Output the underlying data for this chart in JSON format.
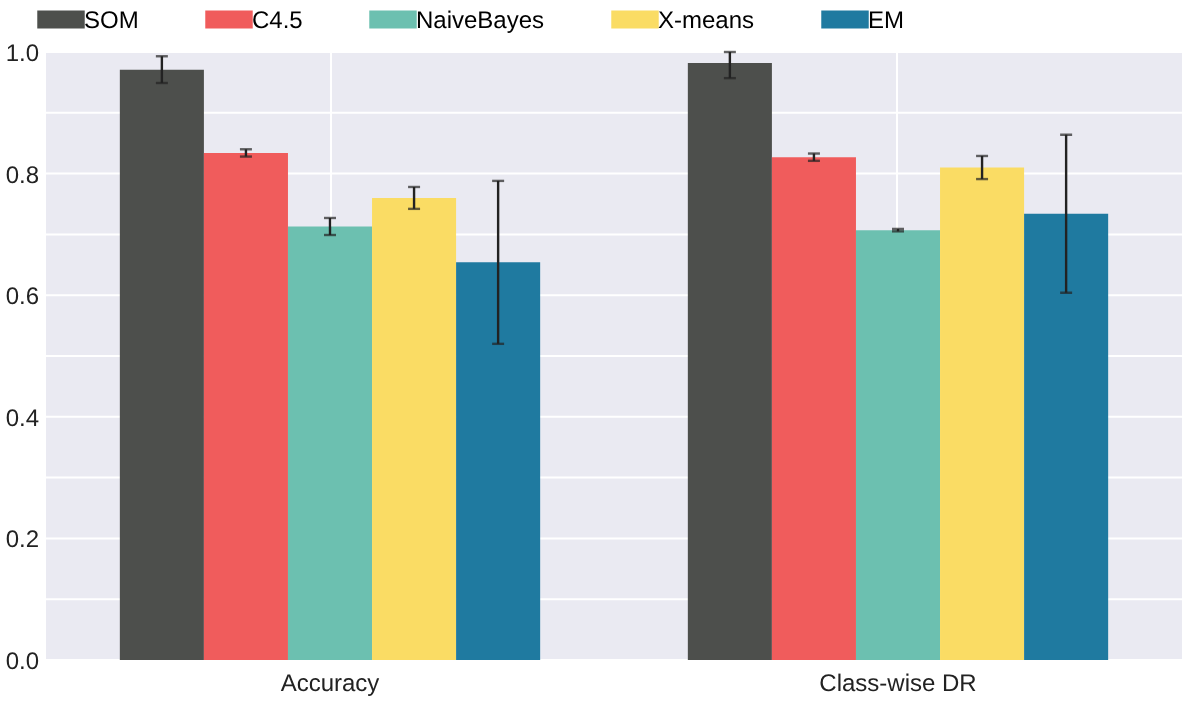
{
  "chart_data": {
    "type": "bar",
    "categories": [
      "Accuracy",
      "Class-wise DR"
    ],
    "series": [
      {
        "name": "SOM",
        "color": "#4d4f4c",
        "values": [
          0.971,
          0.982
        ],
        "errors": [
          0.022,
          [
            0.957,
            1.0
          ]
        ]
      },
      {
        "name": "C4.5",
        "color": "#f05c5c",
        "values": [
          0.834,
          0.827
        ],
        "errors": [
          0.006,
          0.006
        ]
      },
      {
        "name": "NaiveBayes",
        "color": "#6cc0b0",
        "values": [
          0.713,
          0.707
        ],
        "errors": [
          0.014,
          0.002
        ]
      },
      {
        "name": "X-means",
        "color": "#fadc64",
        "values": [
          0.76,
          0.81
        ],
        "errors": [
          0.018,
          0.019
        ]
      },
      {
        "name": "EM",
        "color": "#1f7aa0",
        "values": [
          0.654,
          0.734
        ],
        "errors": [
          0.134,
          0.13
        ]
      }
    ],
    "ylim": [
      0,
      1.0
    ],
    "yticks": [
      {
        "value": 0.0,
        "label": "0.0"
      },
      {
        "value": 0.1,
        "label": null
      },
      0.2,
      {
        "value": 0.3,
        "label": null
      },
      0.4,
      {
        "value": 0.5,
        "label": null
      },
      0.6,
      {
        "value": 0.7,
        "label": null
      },
      0.8,
      {
        "value": 0.9,
        "label": null
      },
      {
        "value": 1.0,
        "label": "1.0"
      }
    ],
    "grid": true,
    "legend": "top"
  }
}
